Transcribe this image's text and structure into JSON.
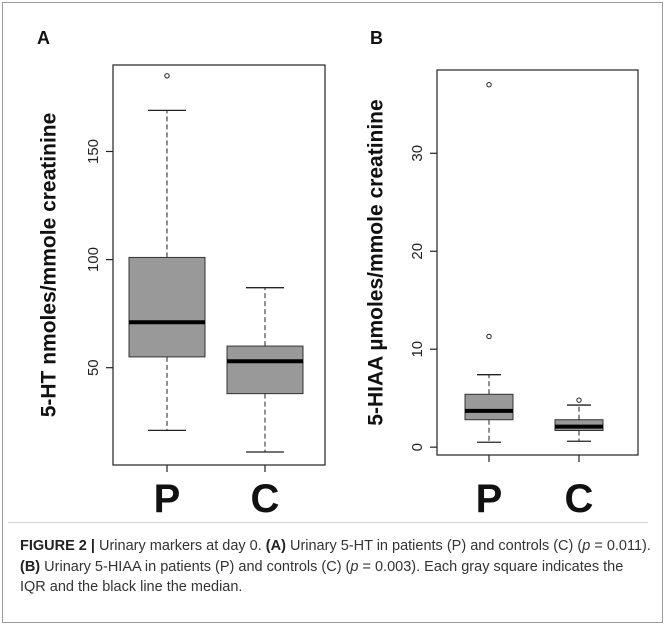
{
  "panels": [
    {
      "label": "A"
    },
    {
      "label": "B"
    }
  ],
  "caption": {
    "figure": "FIGURE 2 |",
    "t1": " Urinary markers at day 0. ",
    "a_tag": "(A)",
    "t2": " Urinary 5-HT in patients (P) and controls (C) (",
    "p_sym1": "p",
    "t3": " = 0.011). ",
    "b_tag": "(B)",
    "t4": " Urinary 5-HIAA in patients (P) and controls (C) (",
    "p_sym2": "p",
    "t5": " = 0.003). Each gray square indicates the IQR and the black line the median."
  },
  "chart_data": [
    {
      "type": "box",
      "panel": "A",
      "ylabel": "5-HT nmoles/mmole creatinine",
      "categories": [
        "P",
        "C"
      ],
      "ylim": [
        5,
        190
      ],
      "yticks": [
        50,
        100,
        150
      ],
      "box_color": "#999999",
      "boxes": [
        {
          "name": "P",
          "whisker_low": 21,
          "q1": 55,
          "median": 71,
          "q3": 101,
          "whisker_high": 169,
          "outliers": [
            185
          ]
        },
        {
          "name": "C",
          "whisker_low": 11,
          "q1": 38,
          "median": 53,
          "q3": 60,
          "whisker_high": 87,
          "outliers": []
        }
      ]
    },
    {
      "type": "box",
      "panel": "B",
      "ylabel": "5-HIAA µmoles/mmole creatinine",
      "categories": [
        "P",
        "C"
      ],
      "ylim": [
        -0.8,
        38.5
      ],
      "yticks": [
        0,
        10,
        20,
        30
      ],
      "box_color": "#999999",
      "boxes": [
        {
          "name": "P",
          "whisker_low": 0.5,
          "q1": 2.8,
          "median": 3.7,
          "q3": 5.4,
          "whisker_high": 7.4,
          "outliers": [
            11.3,
            37
          ]
        },
        {
          "name": "C",
          "whisker_low": 0.6,
          "q1": 1.7,
          "median": 2.1,
          "q3": 2.8,
          "whisker_high": 4.3,
          "outliers": [
            4.8
          ]
        }
      ]
    }
  ]
}
